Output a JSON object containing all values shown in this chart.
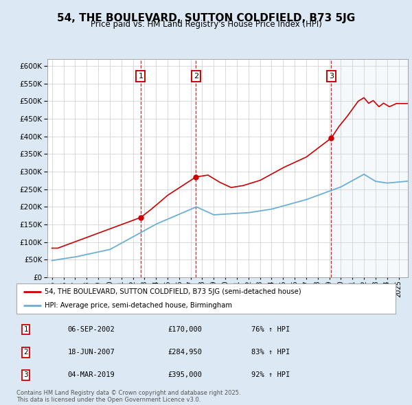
{
  "title": "54, THE BOULEVARD, SUTTON COLDFIELD, B73 5JG",
  "subtitle": "Price paid vs. HM Land Registry's House Price Index (HPI)",
  "legend_line1": "54, THE BOULEVARD, SUTTON COLDFIELD, B73 5JG (semi-detached house)",
  "legend_line2": "HPI: Average price, semi-detached house, Birmingham",
  "footnote": "Contains HM Land Registry data © Crown copyright and database right 2025.\nThis data is licensed under the Open Government Licence v3.0.",
  "sale_dates_decimal": [
    2002.674,
    2007.463,
    2019.169
  ],
  "sale_prices": [
    170000,
    284950,
    395000
  ],
  "sale_labels": [
    "1",
    "2",
    "3"
  ],
  "sale_table": [
    [
      "1",
      "06-SEP-2002",
      "£170,000",
      "76% ↑ HPI"
    ],
    [
      "2",
      "18-JUN-2007",
      "£284,950",
      "83% ↑ HPI"
    ],
    [
      "3",
      "04-MAR-2019",
      "£395,000",
      "92% ↑ HPI"
    ]
  ],
  "hpi_color": "#6baed6",
  "property_color": "#cc0000",
  "shade_color": "#dce9f5",
  "background_color": "#dce9f5",
  "plot_bg_color": "#ffffff",
  "ylim": [
    0,
    620000
  ],
  "yticks": [
    0,
    50000,
    100000,
    150000,
    200000,
    250000,
    300000,
    350000,
    400000,
    450000,
    500000,
    550000,
    600000
  ],
  "xlim_start": 1994.6,
  "xlim_end": 2025.8,
  "grid_color": "#cccccc",
  "dashed_color": "#cc0000"
}
